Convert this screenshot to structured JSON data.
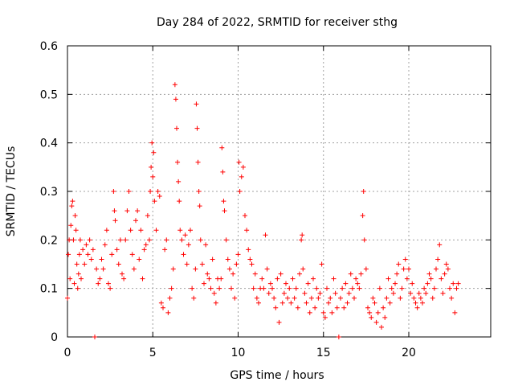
{
  "chart_data": {
    "type": "scatter",
    "title": "Day 284 of 2022, SRMTID for receiver sthg",
    "xlabel": "GPS time / hours",
    "ylabel": "SRMTID / TECUs",
    "xlim": [
      0,
      24.8
    ],
    "ylim": [
      0,
      0.6
    ],
    "xticks": [
      0,
      5,
      10,
      15,
      20
    ],
    "xtick_labels": [
      "0",
      "5",
      "10",
      "15",
      "20"
    ],
    "yticks": [
      0,
      0.1,
      0.2,
      0.3,
      0.4,
      0.5,
      0.6
    ],
    "ytick_labels": [
      "0",
      "0.1",
      "0.2",
      "0.3",
      "0.4",
      "0.5",
      "0.6"
    ],
    "grid": true,
    "marker": "plus",
    "color": "#ff0000",
    "series": [
      {
        "name": "SRMTID",
        "points": [
          [
            0.0,
            0.08
          ],
          [
            0.05,
            0.17
          ],
          [
            0.1,
            0.2
          ],
          [
            0.15,
            0.12
          ],
          [
            0.2,
            0.23
          ],
          [
            0.25,
            0.27
          ],
          [
            0.3,
            0.28
          ],
          [
            0.35,
            0.2
          ],
          [
            0.4,
            0.11
          ],
          [
            0.45,
            0.25
          ],
          [
            0.5,
            0.22
          ],
          [
            0.55,
            0.15
          ],
          [
            0.6,
            0.1
          ],
          [
            0.65,
            0.13
          ],
          [
            0.7,
            0.17
          ],
          [
            0.75,
            0.2
          ],
          [
            0.8,
            0.12
          ],
          [
            0.9,
            0.18
          ],
          [
            1.0,
            0.15
          ],
          [
            1.1,
            0.19
          ],
          [
            1.2,
            0.17
          ],
          [
            1.3,
            0.2
          ],
          [
            1.4,
            0.16
          ],
          [
            1.5,
            0.18
          ],
          [
            1.6,
            0.0
          ],
          [
            1.7,
            0.14
          ],
          [
            1.8,
            0.11
          ],
          [
            1.9,
            0.12
          ],
          [
            2.0,
            0.16
          ],
          [
            2.1,
            0.14
          ],
          [
            2.2,
            0.19
          ],
          [
            2.3,
            0.22
          ],
          [
            2.4,
            0.11
          ],
          [
            2.5,
            0.1
          ],
          [
            2.6,
            0.17
          ],
          [
            2.7,
            0.3
          ],
          [
            2.75,
            0.26
          ],
          [
            2.8,
            0.24
          ],
          [
            2.9,
            0.18
          ],
          [
            3.0,
            0.15
          ],
          [
            3.1,
            0.2
          ],
          [
            3.2,
            0.13
          ],
          [
            3.3,
            0.12
          ],
          [
            3.4,
            0.2
          ],
          [
            3.5,
            0.26
          ],
          [
            3.6,
            0.3
          ],
          [
            3.7,
            0.22
          ],
          [
            3.8,
            0.17
          ],
          [
            3.9,
            0.14
          ],
          [
            4.0,
            0.24
          ],
          [
            4.1,
            0.26
          ],
          [
            4.2,
            0.16
          ],
          [
            4.3,
            0.22
          ],
          [
            4.4,
            0.12
          ],
          [
            4.5,
            0.18
          ],
          [
            4.6,
            0.19
          ],
          [
            4.7,
            0.25
          ],
          [
            4.8,
            0.2
          ],
          [
            4.85,
            0.3
          ],
          [
            4.9,
            0.35
          ],
          [
            4.95,
            0.4
          ],
          [
            5.0,
            0.33
          ],
          [
            5.05,
            0.38
          ],
          [
            5.1,
            0.28
          ],
          [
            5.2,
            0.22
          ],
          [
            5.3,
            0.3
          ],
          [
            5.4,
            0.29
          ],
          [
            5.5,
            0.07
          ],
          [
            5.6,
            0.06
          ],
          [
            5.7,
            0.18
          ],
          [
            5.8,
            0.2
          ],
          [
            5.9,
            0.05
          ],
          [
            6.0,
            0.08
          ],
          [
            6.1,
            0.1
          ],
          [
            6.2,
            0.14
          ],
          [
            6.3,
            0.52
          ],
          [
            6.35,
            0.49
          ],
          [
            6.4,
            0.43
          ],
          [
            6.45,
            0.36
          ],
          [
            6.5,
            0.32
          ],
          [
            6.55,
            0.28
          ],
          [
            6.6,
            0.22
          ],
          [
            6.7,
            0.2
          ],
          [
            6.8,
            0.17
          ],
          [
            6.9,
            0.21
          ],
          [
            7.0,
            0.15
          ],
          [
            7.1,
            0.19
          ],
          [
            7.2,
            0.22
          ],
          [
            7.3,
            0.1
          ],
          [
            7.4,
            0.08
          ],
          [
            7.5,
            0.14
          ],
          [
            7.55,
            0.48
          ],
          [
            7.6,
            0.43
          ],
          [
            7.65,
            0.36
          ],
          [
            7.7,
            0.3
          ],
          [
            7.75,
            0.27
          ],
          [
            7.8,
            0.2
          ],
          [
            7.9,
            0.15
          ],
          [
            8.0,
            0.11
          ],
          [
            8.1,
            0.19
          ],
          [
            8.2,
            0.13
          ],
          [
            8.3,
            0.12
          ],
          [
            8.4,
            0.1
          ],
          [
            8.5,
            0.16
          ],
          [
            8.6,
            0.09
          ],
          [
            8.7,
            0.07
          ],
          [
            8.8,
            0.12
          ],
          [
            8.9,
            0.1
          ],
          [
            9.0,
            0.12
          ],
          [
            9.05,
            0.39
          ],
          [
            9.1,
            0.34
          ],
          [
            9.15,
            0.28
          ],
          [
            9.2,
            0.26
          ],
          [
            9.3,
            0.2
          ],
          [
            9.4,
            0.16
          ],
          [
            9.5,
            0.14
          ],
          [
            9.6,
            0.1
          ],
          [
            9.7,
            0.13
          ],
          [
            9.8,
            0.08
          ],
          [
            9.9,
            0.15
          ],
          [
            10.0,
            0.17
          ],
          [
            10.05,
            0.36
          ],
          [
            10.1,
            0.3
          ],
          [
            10.2,
            0.33
          ],
          [
            10.3,
            0.35
          ],
          [
            10.4,
            0.25
          ],
          [
            10.5,
            0.22
          ],
          [
            10.6,
            0.18
          ],
          [
            10.7,
            0.16
          ],
          [
            10.8,
            0.15
          ],
          [
            10.9,
            0.1
          ],
          [
            11.0,
            0.13
          ],
          [
            11.1,
            0.08
          ],
          [
            11.2,
            0.07
          ],
          [
            11.3,
            0.1
          ],
          [
            11.4,
            0.12
          ],
          [
            11.5,
            0.1
          ],
          [
            11.6,
            0.21
          ],
          [
            11.7,
            0.14
          ],
          [
            11.8,
            0.09
          ],
          [
            11.9,
            0.11
          ],
          [
            12.0,
            0.1
          ],
          [
            12.1,
            0.08
          ],
          [
            12.2,
            0.06
          ],
          [
            12.3,
            0.12
          ],
          [
            12.4,
            0.03
          ],
          [
            12.5,
            0.13
          ],
          [
            12.6,
            0.07
          ],
          [
            12.7,
            0.09
          ],
          [
            12.8,
            0.11
          ],
          [
            12.9,
            0.08
          ],
          [
            13.0,
            0.1
          ],
          [
            13.1,
            0.07
          ],
          [
            13.2,
            0.12
          ],
          [
            13.3,
            0.08
          ],
          [
            13.4,
            0.1
          ],
          [
            13.5,
            0.06
          ],
          [
            13.6,
            0.13
          ],
          [
            13.7,
            0.2
          ],
          [
            13.75,
            0.21
          ],
          [
            13.8,
            0.14
          ],
          [
            13.9,
            0.09
          ],
          [
            14.0,
            0.07
          ],
          [
            14.1,
            0.11
          ],
          [
            14.2,
            0.05
          ],
          [
            14.3,
            0.08
          ],
          [
            14.4,
            0.12
          ],
          [
            14.5,
            0.06
          ],
          [
            14.6,
            0.1
          ],
          [
            14.7,
            0.08
          ],
          [
            14.8,
            0.09
          ],
          [
            14.9,
            0.15
          ],
          [
            15.0,
            0.05
          ],
          [
            15.1,
            0.04
          ],
          [
            15.2,
            0.1
          ],
          [
            15.3,
            0.07
          ],
          [
            15.4,
            0.08
          ],
          [
            15.5,
            0.05
          ],
          [
            15.6,
            0.12
          ],
          [
            15.7,
            0.09
          ],
          [
            15.8,
            0.06
          ],
          [
            15.9,
            0.0
          ],
          [
            16.0,
            0.08
          ],
          [
            16.1,
            0.1
          ],
          [
            16.2,
            0.06
          ],
          [
            16.3,
            0.11
          ],
          [
            16.4,
            0.07
          ],
          [
            16.5,
            0.09
          ],
          [
            16.6,
            0.13
          ],
          [
            16.7,
            0.1
          ],
          [
            16.8,
            0.08
          ],
          [
            16.9,
            0.12
          ],
          [
            17.0,
            0.11
          ],
          [
            17.1,
            0.1
          ],
          [
            17.2,
            0.13
          ],
          [
            17.3,
            0.25
          ],
          [
            17.35,
            0.3
          ],
          [
            17.4,
            0.2
          ],
          [
            17.5,
            0.14
          ],
          [
            17.6,
            0.06
          ],
          [
            17.7,
            0.05
          ],
          [
            17.8,
            0.04
          ],
          [
            17.9,
            0.08
          ],
          [
            18.0,
            0.07
          ],
          [
            18.1,
            0.03
          ],
          [
            18.2,
            0.05
          ],
          [
            18.3,
            0.1
          ],
          [
            18.4,
            0.02
          ],
          [
            18.5,
            0.06
          ],
          [
            18.6,
            0.04
          ],
          [
            18.7,
            0.08
          ],
          [
            18.8,
            0.12
          ],
          [
            18.9,
            0.07
          ],
          [
            19.0,
            0.1
          ],
          [
            19.1,
            0.09
          ],
          [
            19.2,
            0.11
          ],
          [
            19.3,
            0.13
          ],
          [
            19.4,
            0.15
          ],
          [
            19.5,
            0.08
          ],
          [
            19.6,
            0.1
          ],
          [
            19.7,
            0.14
          ],
          [
            19.8,
            0.16
          ],
          [
            19.9,
            0.12
          ],
          [
            20.0,
            0.14
          ],
          [
            20.1,
            0.09
          ],
          [
            20.2,
            0.11
          ],
          [
            20.3,
            0.08
          ],
          [
            20.4,
            0.07
          ],
          [
            20.5,
            0.06
          ],
          [
            20.6,
            0.09
          ],
          [
            20.7,
            0.08
          ],
          [
            20.8,
            0.07
          ],
          [
            20.9,
            0.1
          ],
          [
            21.0,
            0.09
          ],
          [
            21.1,
            0.11
          ],
          [
            21.2,
            0.13
          ],
          [
            21.3,
            0.12
          ],
          [
            21.4,
            0.08
          ],
          [
            21.5,
            0.1
          ],
          [
            21.6,
            0.14
          ],
          [
            21.7,
            0.16
          ],
          [
            21.8,
            0.19
          ],
          [
            21.9,
            0.12
          ],
          [
            22.0,
            0.09
          ],
          [
            22.1,
            0.13
          ],
          [
            22.2,
            0.15
          ],
          [
            22.3,
            0.14
          ],
          [
            22.4,
            0.1
          ],
          [
            22.5,
            0.08
          ],
          [
            22.6,
            0.11
          ],
          [
            22.7,
            0.05
          ],
          [
            22.8,
            0.1
          ],
          [
            22.9,
            0.11
          ]
        ]
      }
    ]
  }
}
